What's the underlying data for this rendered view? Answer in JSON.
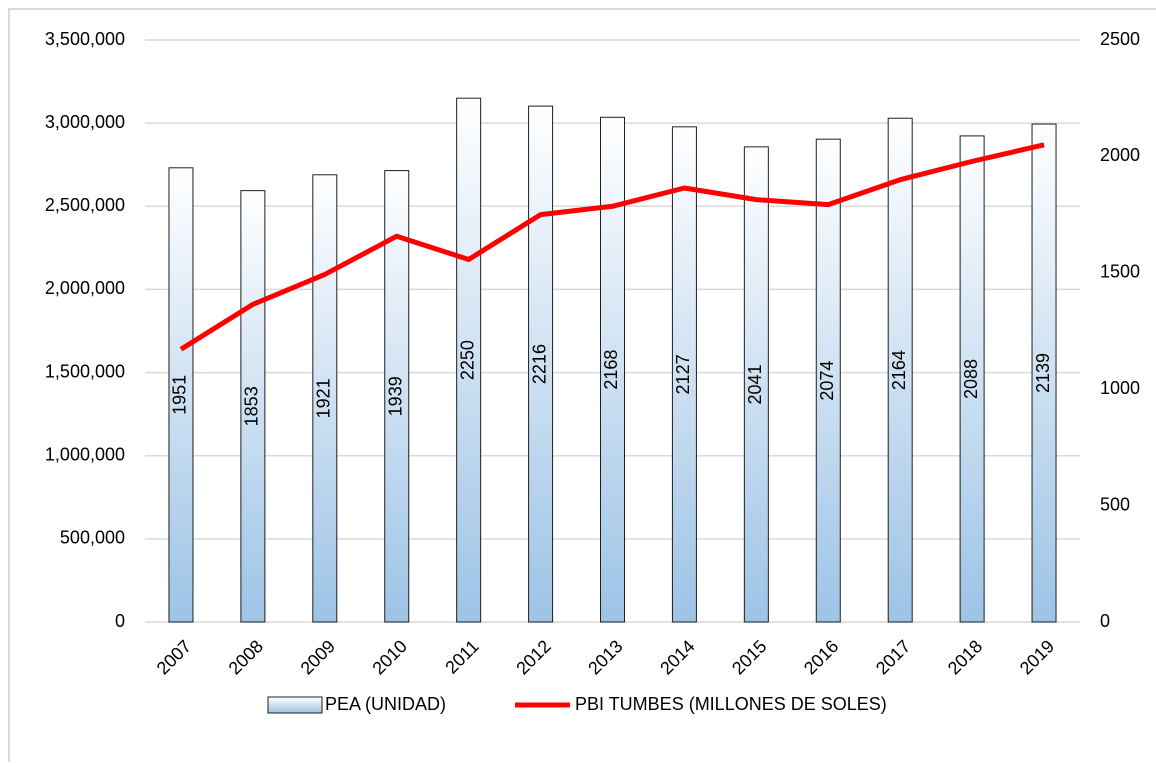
{
  "chart_data": {
    "type": "bar",
    "categories": [
      "2007",
      "2008",
      "2009",
      "2010",
      "2011",
      "2012",
      "2013",
      "2014",
      "2015",
      "2016",
      "2017",
      "2018",
      "2019"
    ],
    "series": [
      {
        "name": "PEA (UNIDAD)",
        "color": "#9dc3e6",
        "axis": "y2",
        "values": [
          1951,
          1853,
          1921,
          1939,
          2250,
          2216,
          2168,
          2127,
          2041,
          2074,
          2164,
          2088,
          2139
        ]
      },
      {
        "name": "PBI TUMBES (MILLONES DE SOLES)",
        "color": "#ff0000",
        "type": "line",
        "values": [
          1640000,
          1910000,
          2090000,
          2320000,
          2180000,
          2450000,
          2500000,
          2610000,
          2540000,
          2510000,
          2660000,
          2770000,
          2870000
        ]
      }
    ],
    "ylim": [
      0,
      3500000
    ],
    "yticks": [
      0,
      {
        "value": 500000,
        "label": "500,000"
      },
      {
        "value": 1000000,
        "label": "1,000,000"
      },
      {
        "value": 1500000,
        "label": "1,500,000"
      },
      {
        "value": 2000000,
        "label": "2,000,000"
      },
      {
        "value": 2500000,
        "label": "2,500,000"
      },
      {
        "value": 3000000,
        "label": "3,000,000"
      },
      {
        "value": 3500000,
        "label": "3,500,000"
      }
    ],
    "y2lim": [
      0,
      2500
    ],
    "y2ticks": [
      0,
      500,
      1000,
      1500,
      2000,
      2500
    ],
    "grid": true,
    "legend": "bottom"
  }
}
